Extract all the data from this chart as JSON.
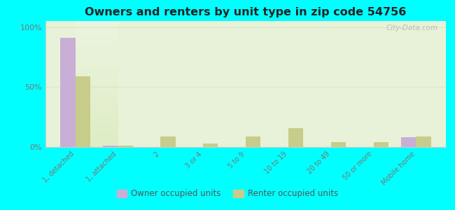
{
  "title": "Owners and renters by unit type in zip code 54756",
  "categories": [
    "1, detached",
    "1, attached",
    "2",
    "3 or 4",
    "5 to 9",
    "10 to 19",
    "20 to 49",
    "50 or more",
    "Mobile home"
  ],
  "owner_values": [
    91,
    1,
    0,
    0,
    0,
    0,
    0,
    0,
    8
  ],
  "renter_values": [
    59,
    1,
    9,
    3,
    9,
    16,
    4,
    4,
    9
  ],
  "owner_color": "#c9aed6",
  "renter_color": "#c8cc8a",
  "background_color": "#00ffff",
  "plot_bg_color": "#e8f2d8",
  "ylabel_ticks": [
    "0%",
    "50%",
    "100%"
  ],
  "yticks": [
    0,
    50,
    100
  ],
  "ylim": [
    0,
    105
  ],
  "bar_width": 0.35,
  "watermark": "City-Data.com",
  "legend_owner": "Owner occupied units",
  "legend_renter": "Renter occupied units",
  "grid_color": "#d8e8c8",
  "tick_color": "#777777",
  "spine_color": "#cccccc"
}
